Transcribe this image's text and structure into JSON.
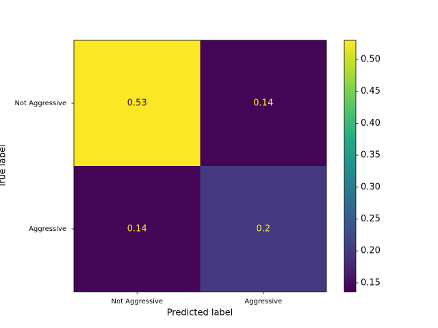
{
  "chart_data": {
    "type": "heatmap",
    "xlabel": "Predicted label",
    "ylabel": "True label",
    "x_categories": [
      "Not Aggressive",
      "Aggressive"
    ],
    "y_categories": [
      "Not Aggressive",
      "Aggressive"
    ],
    "values": [
      [
        0.53,
        0.14
      ],
      [
        0.14,
        0.2
      ]
    ],
    "colormap": "viridis",
    "clim": [
      0.136,
      0.53
    ],
    "cticks": [
      0.15,
      {
        "value": 0.2,
        "label": "0.20"
      },
      0.25,
      {
        "value": 0.3,
        "label": "0.30"
      },
      0.35,
      {
        "value": 0.4,
        "label": "0.40"
      },
      0.45,
      {
        "value": 0.5,
        "label": "0.50"
      }
    ]
  }
}
